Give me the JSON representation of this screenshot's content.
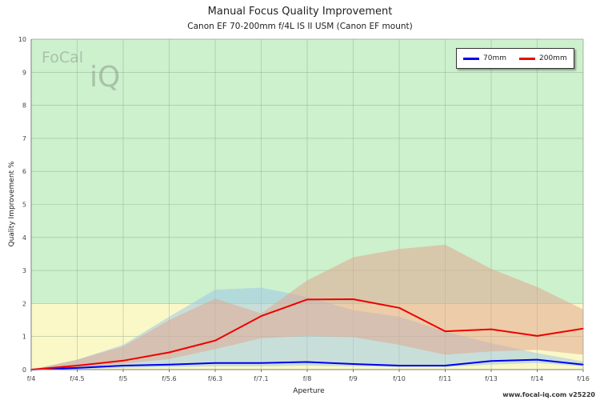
{
  "header": {
    "title": "Manual Focus Quality Improvement",
    "subtitle": "Canon EF 70-200mm f/4L IS II USM (Canon EF mount)"
  },
  "footer": "www.focal-iq.com  v25220",
  "logo": {
    "text_part1": "FoCal",
    "text_part2": "iQ"
  },
  "chart_data": {
    "type": "line",
    "title": "Manual Focus Quality Improvement",
    "subtitle": "Canon EF 70-200mm f/4L IS II USM (Canon EF mount)",
    "xlabel": "Aperture",
    "ylabel": "Quality Improvement %",
    "categories": [
      "f/4",
      "f/4.5",
      "f/5",
      "f/5.6",
      "f/6.3",
      "f/7.1",
      "f/8",
      "f/9",
      "f/10",
      "f/11",
      "f/13",
      "f/14",
      "f/16"
    ],
    "ylim": [
      0,
      10
    ],
    "yticks": [
      0,
      1,
      2,
      3,
      4,
      5,
      6,
      7,
      8,
      9,
      10
    ],
    "grid": true,
    "legend_position": "top-right",
    "background_bands": [
      {
        "from": 0,
        "to": 2,
        "color": "#fbf8c8"
      },
      {
        "from": 2,
        "to": 10,
        "color": "#cdf0cd"
      }
    ],
    "series": [
      {
        "name": "70mm",
        "color": "#0000ee",
        "values": [
          0,
          0.05,
          0.12,
          0.15,
          0.2,
          0.2,
          0.23,
          0.17,
          0.12,
          0.12,
          0.26,
          0.3,
          0.15
        ],
        "band_upper": [
          0,
          0.3,
          0.75,
          1.6,
          2.42,
          2.48,
          2.2,
          1.8,
          1.6,
          1.15,
          0.8,
          0.5,
          0.25
        ],
        "band_lower": [
          0,
          0.02,
          0.05,
          0.08,
          0.1,
          0.1,
          0.12,
          0.1,
          0.08,
          0.08,
          0.15,
          0.2,
          0.1
        ],
        "band_color": "#9ec8e8"
      },
      {
        "name": "200mm",
        "color": "#ee0000",
        "values": [
          0,
          0.12,
          0.27,
          0.52,
          0.88,
          1.62,
          2.12,
          2.13,
          1.87,
          1.16,
          1.22,
          1.02,
          1.24
        ],
        "band_upper": [
          0,
          0.3,
          0.7,
          1.5,
          2.15,
          1.7,
          2.7,
          3.4,
          3.65,
          3.78,
          3.05,
          2.5,
          1.82
        ],
        "band_lower": [
          0,
          0.08,
          0.18,
          0.32,
          0.62,
          0.95,
          1.02,
          0.98,
          0.75,
          0.45,
          0.55,
          0.6,
          0.45
        ],
        "band_color": "#e0a890"
      }
    ]
  }
}
